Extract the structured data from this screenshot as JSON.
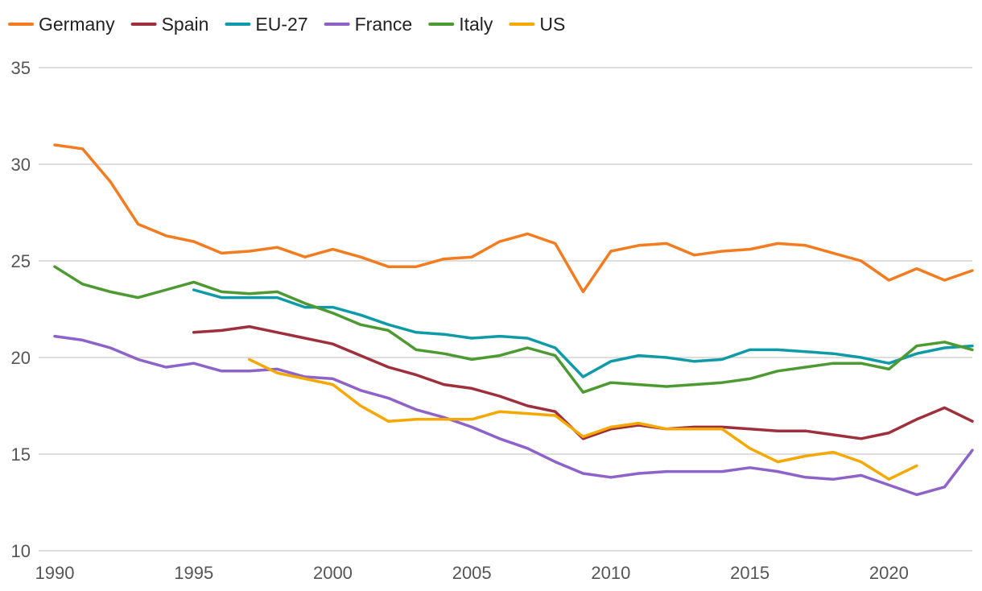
{
  "chart_data": {
    "type": "line",
    "title": "",
    "xlabel": "",
    "ylabel": "",
    "xlim": [
      1990,
      2023
    ],
    "ylim": [
      10,
      35
    ],
    "x_ticks": [
      1990,
      1995,
      2000,
      2005,
      2010,
      2015,
      2020
    ],
    "y_ticks": [
      10,
      15,
      20,
      25,
      30,
      35
    ],
    "grid": "horizontal",
    "legend_position": "top-left",
    "series": [
      {
        "name": "Germany",
        "color": "#f47c20",
        "points": [
          [
            1990,
            31.0
          ],
          [
            1991,
            30.8
          ],
          [
            1992,
            29.1
          ],
          [
            1993,
            26.9
          ],
          [
            1994,
            26.3
          ],
          [
            1995,
            26.0
          ],
          [
            1996,
            25.4
          ],
          [
            1997,
            25.5
          ],
          [
            1998,
            25.7
          ],
          [
            1999,
            25.2
          ],
          [
            2000,
            25.6
          ],
          [
            2001,
            25.2
          ],
          [
            2002,
            24.7
          ],
          [
            2003,
            24.7
          ],
          [
            2004,
            25.1
          ],
          [
            2005,
            25.2
          ],
          [
            2006,
            26.0
          ],
          [
            2007,
            26.4
          ],
          [
            2008,
            25.9
          ],
          [
            2009,
            23.4
          ],
          [
            2010,
            25.5
          ],
          [
            2011,
            25.8
          ],
          [
            2012,
            25.9
          ],
          [
            2013,
            25.3
          ],
          [
            2014,
            25.5
          ],
          [
            2015,
            25.6
          ],
          [
            2016,
            25.9
          ],
          [
            2017,
            25.8
          ],
          [
            2018,
            25.4
          ],
          [
            2019,
            25.0
          ],
          [
            2020,
            24.0
          ],
          [
            2021,
            24.6
          ],
          [
            2022,
            24.0
          ],
          [
            2023,
            24.5
          ]
        ]
      },
      {
        "name": "Spain",
        "color": "#9e2f3c",
        "points": [
          [
            1995,
            21.3
          ],
          [
            1996,
            21.4
          ],
          [
            1997,
            21.6
          ],
          [
            1998,
            21.3
          ],
          [
            1999,
            21.0
          ],
          [
            2000,
            20.7
          ],
          [
            2001,
            20.1
          ],
          [
            2002,
            19.5
          ],
          [
            2003,
            19.1
          ],
          [
            2004,
            18.6
          ],
          [
            2005,
            18.4
          ],
          [
            2006,
            18.0
          ],
          [
            2007,
            17.5
          ],
          [
            2008,
            17.2
          ],
          [
            2009,
            15.8
          ],
          [
            2010,
            16.3
          ],
          [
            2011,
            16.5
          ],
          [
            2012,
            16.3
          ],
          [
            2013,
            16.4
          ],
          [
            2014,
            16.4
          ],
          [
            2015,
            16.3
          ],
          [
            2016,
            16.2
          ],
          [
            2017,
            16.2
          ],
          [
            2018,
            16.0
          ],
          [
            2019,
            15.8
          ],
          [
            2020,
            16.1
          ],
          [
            2021,
            16.8
          ],
          [
            2022,
            17.4
          ],
          [
            2023,
            16.7
          ]
        ]
      },
      {
        "name": "EU-27",
        "color": "#0f9aa8",
        "points": [
          [
            1995,
            23.5
          ],
          [
            1996,
            23.1
          ],
          [
            1997,
            23.1
          ],
          [
            1998,
            23.1
          ],
          [
            1999,
            22.6
          ],
          [
            2000,
            22.6
          ],
          [
            2001,
            22.2
          ],
          [
            2002,
            21.7
          ],
          [
            2003,
            21.3
          ],
          [
            2004,
            21.2
          ],
          [
            2005,
            21.0
          ],
          [
            2006,
            21.1
          ],
          [
            2007,
            21.0
          ],
          [
            2008,
            20.5
          ],
          [
            2009,
            19.0
          ],
          [
            2010,
            19.8
          ],
          [
            2011,
            20.1
          ],
          [
            2012,
            20.0
          ],
          [
            2013,
            19.8
          ],
          [
            2014,
            19.9
          ],
          [
            2015,
            20.4
          ],
          [
            2016,
            20.4
          ],
          [
            2017,
            20.3
          ],
          [
            2018,
            20.2
          ],
          [
            2019,
            20.0
          ],
          [
            2020,
            19.7
          ],
          [
            2021,
            20.2
          ],
          [
            2022,
            20.5
          ],
          [
            2023,
            20.6
          ]
        ]
      },
      {
        "name": "France",
        "color": "#8e63c9",
        "points": [
          [
            1990,
            21.1
          ],
          [
            1991,
            20.9
          ],
          [
            1992,
            20.5
          ],
          [
            1993,
            19.9
          ],
          [
            1994,
            19.5
          ],
          [
            1995,
            19.7
          ],
          [
            1996,
            19.3
          ],
          [
            1997,
            19.3
          ],
          [
            1998,
            19.4
          ],
          [
            1999,
            19.0
          ],
          [
            2000,
            18.9
          ],
          [
            2001,
            18.3
          ],
          [
            2002,
            17.9
          ],
          [
            2003,
            17.3
          ],
          [
            2004,
            16.9
          ],
          [
            2005,
            16.4
          ],
          [
            2006,
            15.8
          ],
          [
            2007,
            15.3
          ],
          [
            2008,
            14.6
          ],
          [
            2009,
            14.0
          ],
          [
            2010,
            13.8
          ],
          [
            2011,
            14.0
          ],
          [
            2012,
            14.1
          ],
          [
            2013,
            14.1
          ],
          [
            2014,
            14.1
          ],
          [
            2015,
            14.3
          ],
          [
            2016,
            14.1
          ],
          [
            2017,
            13.8
          ],
          [
            2018,
            13.7
          ],
          [
            2019,
            13.9
          ],
          [
            2020,
            13.4
          ],
          [
            2021,
            12.9
          ],
          [
            2022,
            13.3
          ],
          [
            2023,
            15.2
          ]
        ]
      },
      {
        "name": "Italy",
        "color": "#4e9a32",
        "points": [
          [
            1990,
            24.7
          ],
          [
            1991,
            23.8
          ],
          [
            1992,
            23.4
          ],
          [
            1993,
            23.1
          ],
          [
            1994,
            23.5
          ],
          [
            1995,
            23.9
          ],
          [
            1996,
            23.4
          ],
          [
            1997,
            23.3
          ],
          [
            1998,
            23.4
          ],
          [
            1999,
            22.8
          ],
          [
            2000,
            22.3
          ],
          [
            2001,
            21.7
          ],
          [
            2002,
            21.4
          ],
          [
            2003,
            20.4
          ],
          [
            2004,
            20.2
          ],
          [
            2005,
            19.9
          ],
          [
            2006,
            20.1
          ],
          [
            2007,
            20.5
          ],
          [
            2008,
            20.1
          ],
          [
            2009,
            18.2
          ],
          [
            2010,
            18.7
          ],
          [
            2011,
            18.6
          ],
          [
            2012,
            18.5
          ],
          [
            2013,
            18.6
          ],
          [
            2014,
            18.7
          ],
          [
            2015,
            18.9
          ],
          [
            2016,
            19.3
          ],
          [
            2017,
            19.5
          ],
          [
            2018,
            19.7
          ],
          [
            2019,
            19.7
          ],
          [
            2020,
            19.4
          ],
          [
            2021,
            20.6
          ],
          [
            2022,
            20.8
          ],
          [
            2023,
            20.4
          ]
        ]
      },
      {
        "name": "US",
        "color": "#f5a800",
        "points": [
          [
            1997,
            19.9
          ],
          [
            1998,
            19.2
          ],
          [
            1999,
            18.9
          ],
          [
            2000,
            18.6
          ],
          [
            2001,
            17.5
          ],
          [
            2002,
            16.7
          ],
          [
            2003,
            16.8
          ],
          [
            2004,
            16.8
          ],
          [
            2005,
            16.8
          ],
          [
            2006,
            17.2
          ],
          [
            2007,
            17.1
          ],
          [
            2008,
            17.0
          ],
          [
            2009,
            15.9
          ],
          [
            2010,
            16.4
          ],
          [
            2011,
            16.6
          ],
          [
            2012,
            16.3
          ],
          [
            2013,
            16.3
          ],
          [
            2014,
            16.3
          ],
          [
            2015,
            15.3
          ],
          [
            2016,
            14.6
          ],
          [
            2017,
            14.9
          ],
          [
            2018,
            15.1
          ],
          [
            2019,
            14.6
          ],
          [
            2020,
            13.7
          ],
          [
            2021,
            14.4
          ]
        ]
      }
    ]
  }
}
